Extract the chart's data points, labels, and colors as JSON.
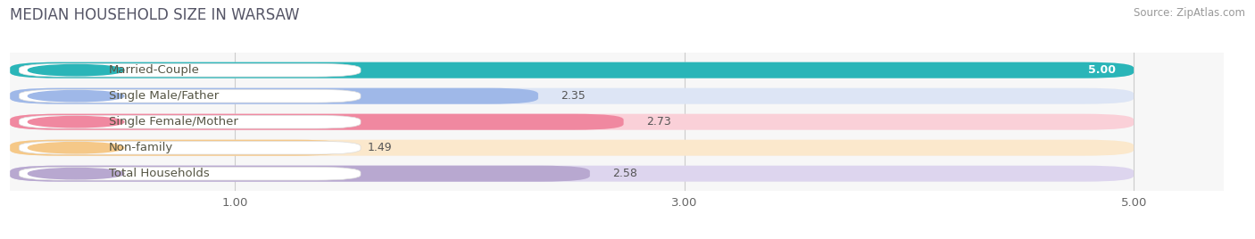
{
  "title": "MEDIAN HOUSEHOLD SIZE IN WARSAW",
  "source": "Source: ZipAtlas.com",
  "categories": [
    "Married-Couple",
    "Single Male/Father",
    "Single Female/Mother",
    "Non-family",
    "Total Households"
  ],
  "values": [
    5.0,
    2.35,
    2.73,
    1.49,
    2.58
  ],
  "bar_colors": [
    "#2ab5b8",
    "#9fb8e8",
    "#f088a0",
    "#f5c888",
    "#b8a8d0"
  ],
  "bar_bg_colors": [
    "#d5eff0",
    "#dde5f5",
    "#fad0d8",
    "#fbe8cc",
    "#ddd5ee"
  ],
  "xlim": [
    0,
    5.4
  ],
  "xmin": 0,
  "xmax": 5.0,
  "xticks": [
    1.0,
    3.0,
    5.0
  ],
  "value_labels": [
    "5.00",
    "2.35",
    "2.73",
    "1.49",
    "2.58"
  ],
  "title_fontsize": 12,
  "source_fontsize": 8.5,
  "label_fontsize": 9.5,
  "value_fontsize": 9,
  "background_color": "#ffffff",
  "plot_bg_color": "#f7f7f7"
}
